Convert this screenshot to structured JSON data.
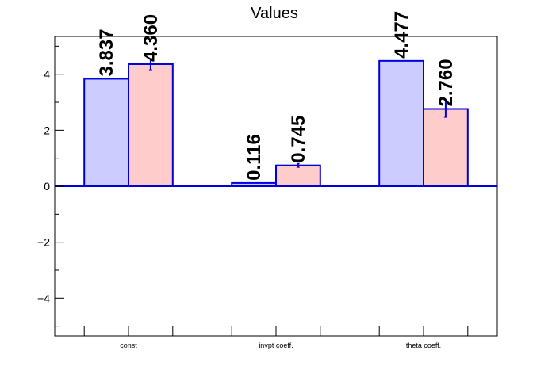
{
  "chart_data": {
    "type": "bar",
    "title": "Values",
    "xlabel": "",
    "ylabel": "",
    "categories": [
      "const",
      "invpt coeff.",
      "theta coeff."
    ],
    "series": [
      {
        "values": [
          3.837,
          0.116,
          4.477
        ],
        "value_labels": [
          "3.837",
          "0.116",
          "4.477"
        ],
        "errors": [
          0,
          0,
          0
        ],
        "fill": "#ccccff",
        "stroke": "#0000dd"
      },
      {
        "values": [
          4.36,
          0.745,
          2.76
        ],
        "value_labels": [
          "4.360",
          "0.745",
          "2.760"
        ],
        "errors": [
          0.2,
          0.07,
          0.3
        ],
        "fill": "#ffcccc",
        "stroke": "#0000dd"
      }
    ],
    "ylim": [
      -5.35,
      5.35
    ],
    "yticks": [
      -4,
      -2,
      0,
      2,
      4
    ],
    "ytick_labels": [
      "−4",
      "−2",
      "0",
      "2",
      "4"
    ],
    "grid": false,
    "legend": "none"
  }
}
